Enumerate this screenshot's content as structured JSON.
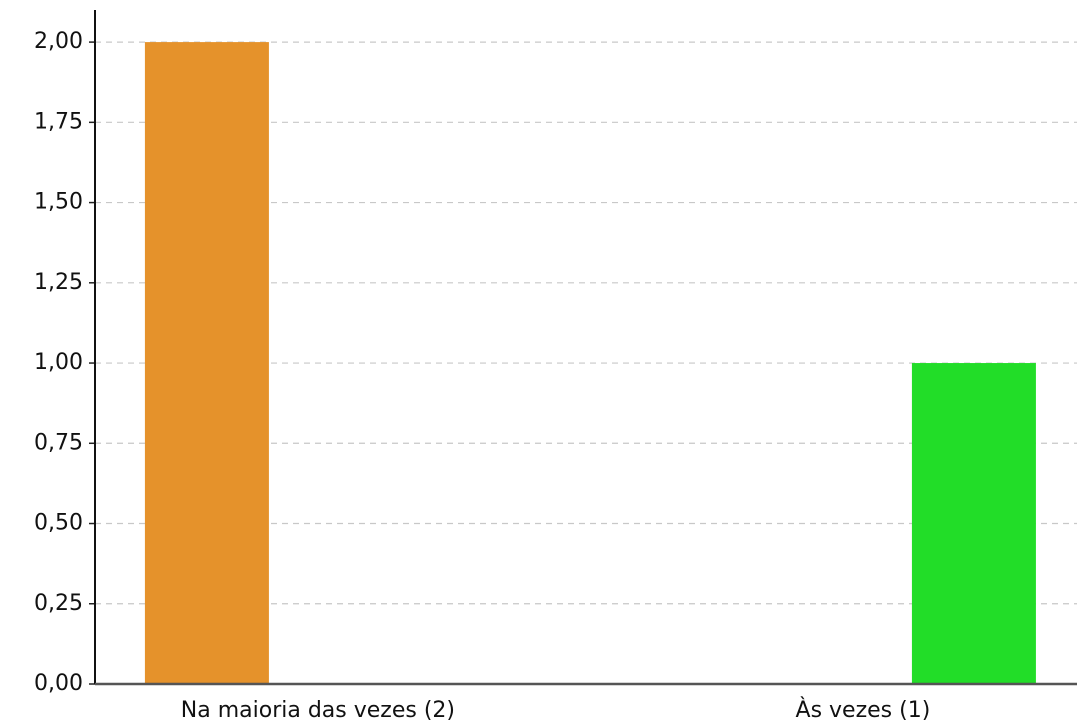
{
  "chart_data": {
    "type": "bar",
    "categories": [
      "Na maioria das vezes (2)",
      "Às vezes (1)"
    ],
    "series": [
      {
        "color": "#e5922b",
        "values": [
          2,
          null
        ]
      },
      {
        "color": "#22dd28",
        "values": [
          null,
          1
        ]
      }
    ],
    "ylim": [
      0,
      2.1
    ],
    "yticks": [
      {
        "value": 0,
        "label": "0,00"
      },
      {
        "value": 0.25,
        "label": "0,25"
      },
      {
        "value": 0.5,
        "label": "0,50"
      },
      {
        "value": 0.75,
        "label": "0,75"
      },
      {
        "value": 1,
        "label": "1,00"
      },
      {
        "value": 1.25,
        "label": "1,25"
      },
      {
        "value": 1.5,
        "label": "1,50"
      },
      {
        "value": 1.75,
        "label": "1,75"
      },
      {
        "value": 2,
        "label": "2,00"
      }
    ],
    "grid": true
  }
}
